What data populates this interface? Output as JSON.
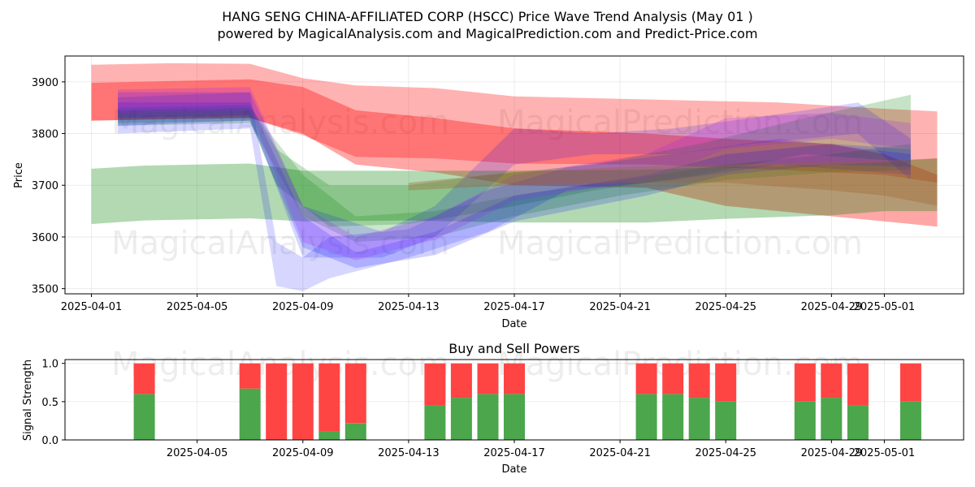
{
  "chart_data": [
    {
      "type": "area",
      "title": "HANG SENG CHINA-AFFILIATED CORP (HSCC) Price Wave Trend Analysis (May 01 )",
      "subtitle": "powered by MagicalAnalysis.com and MagicalPrediction.com and Predict-Price.com",
      "xlabel": "Date",
      "ylabel": "Price",
      "xlim": [
        "2025-03-31",
        "2025-05-04"
      ],
      "ylim": [
        3490,
        3950
      ],
      "x_ticks": [
        "2025-04-01",
        "2025-04-05",
        "2025-04-09",
        "2025-04-13",
        "2025-04-17",
        "2025-04-21",
        "2025-04-25",
        "2025-04-29",
        "2025-05-01"
      ],
      "y_ticks": [
        3500,
        3600,
        3700,
        3800,
        3900
      ],
      "grid": true,
      "watermarks": [
        "MagicalAnalysis.com",
        "MagicalPrediction.com"
      ],
      "colors": {
        "red": "#ff0000",
        "green": "#008000",
        "blue": "#0000ff",
        "purple": "#a020f0",
        "brown": "#a06030"
      },
      "bands": [
        {
          "color": "red",
          "opacity": 0.3,
          "points": [
            [
              "2025-04-01",
              3933,
              3825
            ],
            [
              "2025-04-04",
              3936,
              3829
            ],
            [
              "2025-04-07",
              3935,
              3830
            ],
            [
              "2025-04-09",
              3907,
              3797
            ],
            [
              "2025-04-11",
              3893,
              3755
            ],
            [
              "2025-04-14",
              3888,
              3752
            ],
            [
              "2025-04-17",
              3872,
              3742
            ],
            [
              "2025-04-22",
              3866,
              3740
            ],
            [
              "2025-04-27",
              3860,
              3730
            ],
            [
              "2025-05-01",
              3848,
              3720
            ],
            [
              "2025-05-03",
              3843,
              3705
            ]
          ]
        },
        {
          "color": "red",
          "opacity": 0.35,
          "points": [
            [
              "2025-04-01",
              3898,
              3825
            ],
            [
              "2025-04-07",
              3905,
              3830
            ],
            [
              "2025-04-09",
              3890,
              3800
            ],
            [
              "2025-04-11",
              3845,
              3740
            ],
            [
              "2025-04-14",
              3830,
              3725
            ],
            [
              "2025-04-17",
              3810,
              3700
            ],
            [
              "2025-04-22",
              3800,
              3695
            ],
            [
              "2025-04-25",
              3790,
              3660
            ],
            [
              "2025-04-29",
              3780,
              3640
            ],
            [
              "2025-05-01",
              3760,
              3630
            ],
            [
              "2025-05-03",
              3720,
              3620
            ]
          ]
        },
        {
          "color": "green",
          "opacity": 0.3,
          "points": [
            [
              "2025-04-01",
              3732,
              3625
            ],
            [
              "2025-04-03",
              3738,
              3632
            ],
            [
              "2025-04-07",
              3742,
              3636
            ],
            [
              "2025-04-09",
              3728,
              3630
            ],
            [
              "2025-04-13",
              3728,
              3632
            ],
            [
              "2025-04-17",
              3728,
              3628
            ],
            [
              "2025-04-22",
              3730,
              3628
            ],
            [
              "2025-04-25",
              3735,
              3635
            ],
            [
              "2025-04-29",
              3740,
              3642
            ],
            [
              "2025-05-01",
              3745,
              3650
            ],
            [
              "2025-05-03",
              3752,
              3650
            ]
          ]
        },
        {
          "color": "green",
          "opacity": 0.22,
          "points": [
            [
              "2025-04-02",
              3850,
              3820
            ],
            [
              "2025-04-07",
              3855,
              3825
            ],
            [
              "2025-04-08",
              3770,
              3700
            ],
            [
              "2025-04-10",
              3700,
              3620
            ],
            [
              "2025-04-13",
              3700,
              3625
            ],
            [
              "2025-04-16",
              3720,
              3650
            ],
            [
              "2025-04-20",
              3740,
              3690
            ],
            [
              "2025-04-24",
              3780,
              3720
            ],
            [
              "2025-04-28",
              3830,
              3760
            ],
            [
              "2025-05-02",
              3875,
              3745
            ]
          ]
        },
        {
          "color": "green",
          "opacity": 0.2,
          "points": [
            [
              "2025-04-02",
              3845,
              3815
            ],
            [
              "2025-04-07",
              3850,
              3820
            ],
            [
              "2025-04-09",
              3720,
              3640
            ],
            [
              "2025-04-11",
              3640,
              3590
            ],
            [
              "2025-04-14",
              3650,
              3600
            ],
            [
              "2025-04-17",
              3680,
              3640
            ],
            [
              "2025-04-21",
              3710,
              3680
            ],
            [
              "2025-04-25",
              3740,
              3710
            ],
            [
              "2025-04-29",
              3760,
              3725
            ],
            [
              "2025-05-02",
              3780,
              3730
            ]
          ]
        },
        {
          "color": "blue",
          "opacity": 0.16,
          "points": [
            [
              "2025-04-02",
              3870,
              3800
            ],
            [
              "2025-04-07",
              3880,
              3810
            ],
            [
              "2025-04-08",
              3590,
              3505
            ],
            [
              "2025-04-09",
              3560,
              3495
            ],
            [
              "2025-04-10",
              3600,
              3520
            ],
            [
              "2025-04-13",
              3615,
              3560
            ],
            [
              "2025-04-16",
              3690,
              3610
            ],
            [
              "2025-04-19",
              3735,
              3690
            ],
            [
              "2025-04-23",
              3760,
              3710
            ],
            [
              "2025-04-27",
              3790,
              3740
            ],
            [
              "2025-05-02",
              3760,
              3720
            ]
          ]
        },
        {
          "color": "blue",
          "opacity": 0.18,
          "points": [
            [
              "2025-04-02",
              3860,
              3815
            ],
            [
              "2025-04-07",
              3860,
              3825
            ],
            [
              "2025-04-09",
              3640,
              3580
            ],
            [
              "2025-04-11",
              3570,
              3540
            ],
            [
              "2025-04-14",
              3610,
              3565
            ],
            [
              "2025-04-17",
              3680,
              3630
            ],
            [
              "2025-04-22",
              3720,
              3680
            ],
            [
              "2025-04-25",
              3760,
              3720
            ],
            [
              "2025-04-29",
              3780,
              3740
            ],
            [
              "2025-05-02",
              3770,
              3735
            ]
          ]
        },
        {
          "color": "blue",
          "opacity": 0.16,
          "points": [
            [
              "2025-04-02",
              3880,
              3830
            ],
            [
              "2025-04-07",
              3880,
              3835
            ],
            [
              "2025-04-09",
              3660,
              3560
            ],
            [
              "2025-04-12",
              3610,
              3560
            ],
            [
              "2025-04-14",
              3660,
              3600
            ],
            [
              "2025-04-17",
              3810,
              3740
            ],
            [
              "2025-04-20",
              3800,
              3760
            ],
            [
              "2025-04-23",
              3810,
              3760
            ],
            [
              "2025-04-26",
              3830,
              3780
            ],
            [
              "2025-04-30",
              3860,
              3800
            ],
            [
              "2025-05-02",
              3790,
              3710
            ]
          ]
        },
        {
          "color": "purple",
          "opacity": 0.22,
          "points": [
            [
              "2025-04-02",
              3885,
              3840
            ],
            [
              "2025-04-07",
              3890,
              3845
            ],
            [
              "2025-04-09",
              3660,
              3590
            ],
            [
              "2025-04-11",
              3600,
              3555
            ],
            [
              "2025-04-14",
              3640,
              3595
            ],
            [
              "2025-04-17",
              3720,
              3670
            ],
            [
              "2025-04-22",
              3760,
              3710
            ],
            [
              "2025-04-25",
              3830,
              3770
            ],
            [
              "2025-04-29",
              3840,
              3790
            ],
            [
              "2025-05-02",
              3820,
              3770
            ]
          ]
        },
        {
          "color": "brown",
          "opacity": 0.35,
          "points": [
            [
              "2025-04-13",
              3705,
              3690
            ],
            [
              "2025-04-17",
              3725,
              3700
            ],
            [
              "2025-04-21",
              3735,
              3705
            ],
            [
              "2025-04-25",
              3740,
              3705
            ],
            [
              "2025-04-29",
              3745,
              3690
            ],
            [
              "2025-05-01",
              3748,
              3680
            ],
            [
              "2025-05-03",
              3752,
              3660
            ]
          ]
        }
      ]
    },
    {
      "type": "bar",
      "title": "Buy and Sell Powers",
      "xlabel": "Date",
      "ylabel": "Signal Strength",
      "xlim": [
        "2025-03-31",
        "2025-05-04"
      ],
      "ylim": [
        0,
        1.05
      ],
      "x_ticks": [
        "2025-04-05",
        "2025-04-09",
        "2025-04-13",
        "2025-04-17",
        "2025-04-21",
        "2025-04-25",
        "2025-04-29",
        "2025-05-01"
      ],
      "y_ticks": [
        0.0,
        0.5,
        1.0
      ],
      "grid": true,
      "watermarks": [
        "MagicalAnalysis.com",
        "MagicalPrediction.com"
      ],
      "colors": {
        "buy": "#4ca64c",
        "sell": "#ff4444"
      },
      "categories": [
        "2025-04-03",
        "2025-04-07",
        "2025-04-08",
        "2025-04-09",
        "2025-04-10",
        "2025-04-11",
        "2025-04-14",
        "2025-04-15",
        "2025-04-16",
        "2025-04-17",
        "2025-04-22",
        "2025-04-23",
        "2025-04-24",
        "2025-04-25",
        "2025-04-28",
        "2025-04-29",
        "2025-04-30",
        "2025-05-02"
      ],
      "series": [
        {
          "values": [
            0.6,
            0.67,
            0.0,
            0.0,
            0.11,
            0.22,
            0.45,
            0.55,
            0.6,
            0.6,
            0.6,
            0.6,
            0.55,
            0.5,
            0.5,
            0.55,
            0.45,
            0.5
          ]
        },
        {
          "values": [
            0.4,
            0.33,
            1.0,
            1.0,
            0.89,
            0.78,
            0.55,
            0.45,
            0.4,
            0.4,
            0.4,
            0.4,
            0.45,
            0.5,
            0.5,
            0.45,
            0.55,
            0.5
          ]
        }
      ]
    }
  ]
}
